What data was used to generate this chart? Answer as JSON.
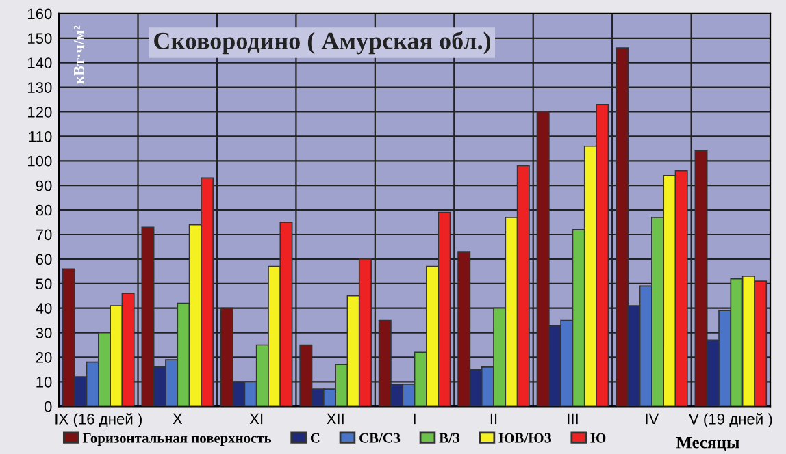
{
  "chart_data": {
    "type": "bar",
    "title": "Сковородино ( Амурская обл.)",
    "xlabel": "Месяцы",
    "ylabel": "кВт·ч/м²",
    "categories": [
      "IX (16 дней )",
      "X",
      "XI",
      "XII",
      "I",
      "II",
      "III",
      "IV",
      "V (19 дней )"
    ],
    "series": [
      {
        "name": "Горизонтальная поверхность",
        "color": "#7b1113",
        "values": [
          56,
          73,
          40,
          25,
          35,
          63,
          120,
          146,
          104
        ]
      },
      {
        "name": "С",
        "color": "#1f2a78",
        "values": [
          12,
          16,
          10,
          7,
          9,
          15,
          33,
          41,
          27
        ]
      },
      {
        "name": "СВ/СЗ",
        "color": "#4a74c8",
        "values": [
          18,
          19,
          10,
          7,
          9,
          16,
          35,
          49,
          39
        ]
      },
      {
        "name": "В/З",
        "color": "#6cc24a",
        "values": [
          30,
          42,
          25,
          17,
          22,
          40,
          72,
          77,
          52
        ]
      },
      {
        "name": "ЮВ/ЮЗ",
        "color": "#f5f020",
        "values": [
          41,
          74,
          57,
          45,
          57,
          77,
          106,
          94,
          53
        ]
      },
      {
        "name": "Ю",
        "color": "#ee2222",
        "values": [
          46,
          93,
          75,
          60,
          79,
          98,
          123,
          96,
          51
        ]
      }
    ],
    "ylim": [
      0,
      160
    ],
    "yticks": [
      0,
      10,
      20,
      30,
      40,
      50,
      60,
      70,
      80,
      90,
      100,
      110,
      120,
      130,
      140,
      150,
      160
    ],
    "grid": true,
    "legend": "bottom"
  }
}
